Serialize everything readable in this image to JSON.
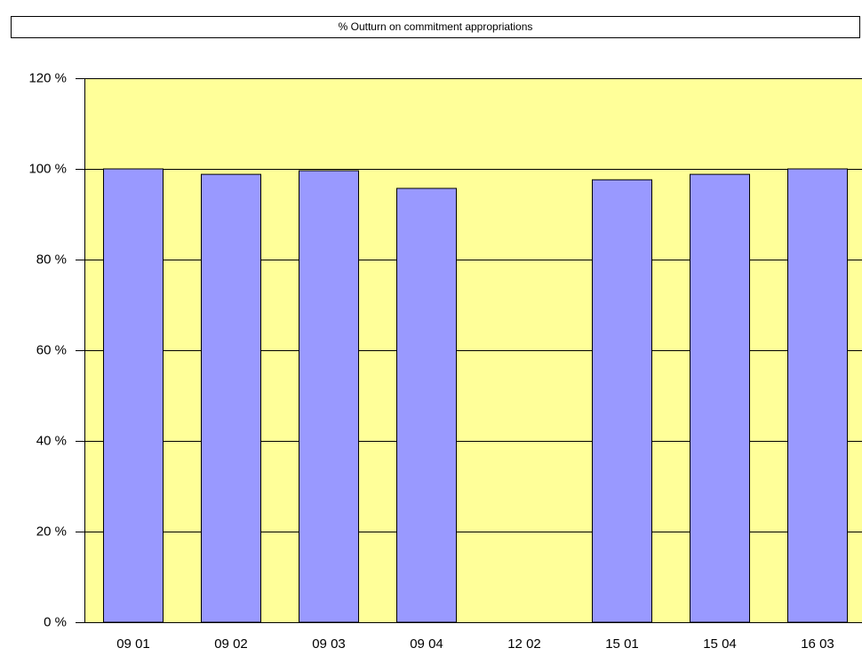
{
  "chart_data": {
    "type": "bar",
    "title": "% Outturn on commitment appropriations",
    "categories": [
      "09 01",
      "09 02",
      "09 03",
      "09 04",
      "12 02",
      "15 01",
      "15 04",
      "16 03"
    ],
    "values": [
      100,
      98.8,
      99.6,
      95.7,
      0,
      97.6,
      98.8,
      100
    ],
    "color": "#9999ff",
    "background": "#ffff99",
    "ylim": [
      0,
      120
    ],
    "yticks": [
      {
        "value": 0,
        "label": "0 %"
      },
      {
        "value": 20,
        "label": "20 %"
      },
      {
        "value": 40,
        "label": "40 %"
      },
      {
        "value": 60,
        "label": "60 %"
      },
      {
        "value": 80,
        "label": "80 %"
      },
      {
        "value": 100,
        "label": "100 %"
      },
      {
        "value": 120,
        "label": "120 %"
      }
    ],
    "grid": true
  }
}
